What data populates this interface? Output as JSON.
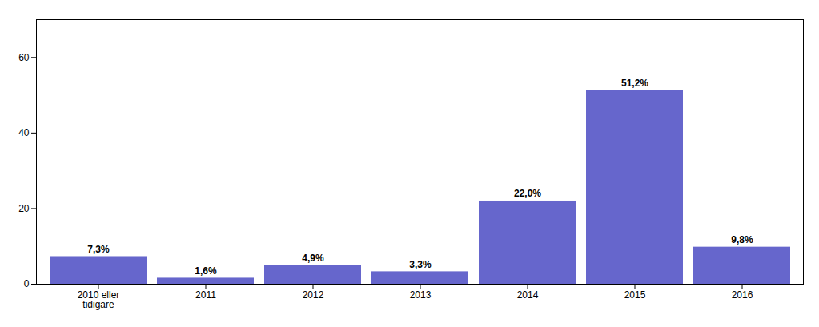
{
  "chart_data": {
    "type": "bar",
    "categories": [
      "2010 eller\ntidigare",
      "2011",
      "2012",
      "2013",
      "2014",
      "2015",
      "2016"
    ],
    "values": [
      7.3,
      1.6,
      4.9,
      3.3,
      22.0,
      51.2,
      9.8
    ],
    "value_labels": [
      "7,3%",
      "1,6%",
      "4,9%",
      "3,3%",
      "22,0%",
      "51,2%",
      "9,8%"
    ],
    "data_labels": true,
    "color": "#6666cc",
    "ylim": [
      0,
      70
    ],
    "yticks": [
      0,
      20,
      40,
      60
    ],
    "grid": false
  }
}
